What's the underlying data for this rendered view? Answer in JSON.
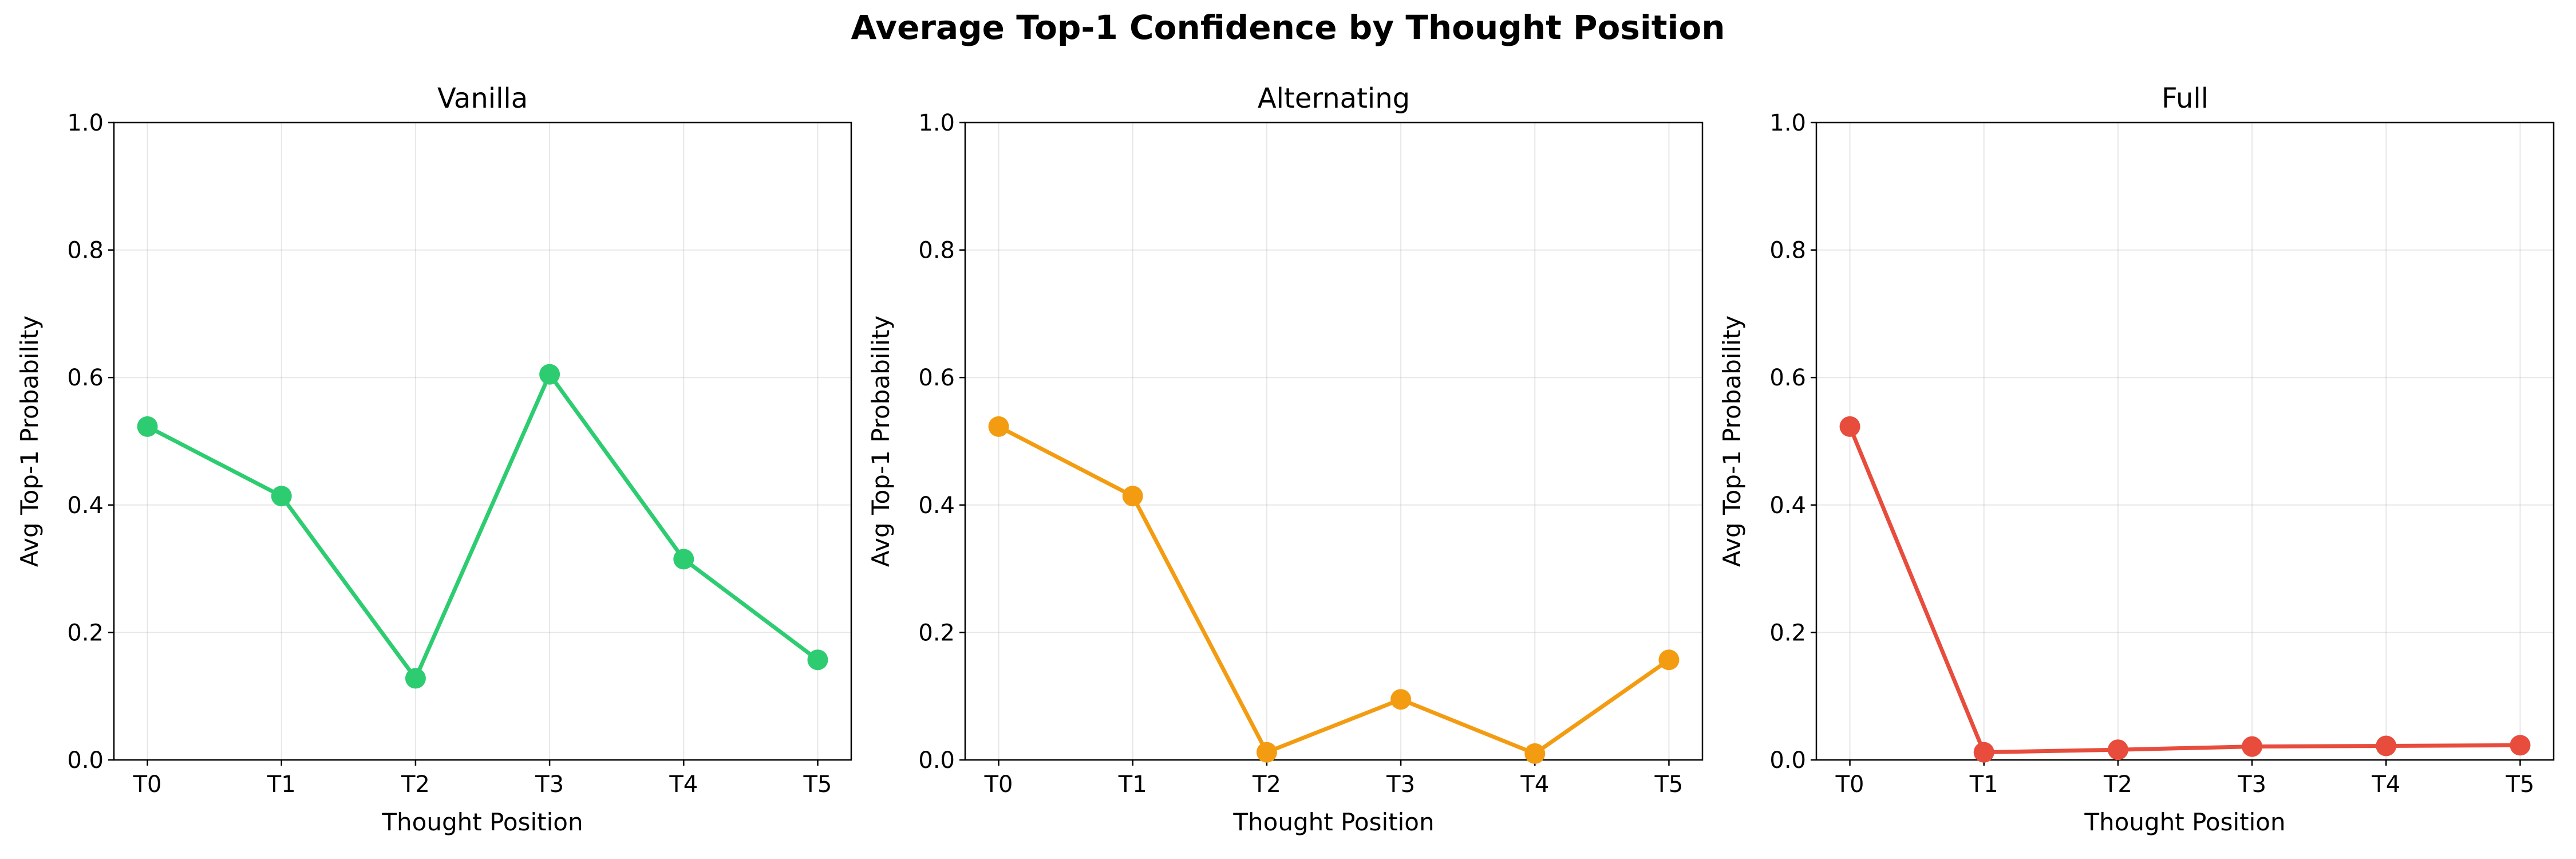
{
  "figure": {
    "title": "Average Top-1 Confidence by Thought Position"
  },
  "chart_data": [
    {
      "type": "line",
      "title": "Vanilla",
      "xlabel": "Thought Position",
      "ylabel": "Avg Top-1 Probability",
      "categories": [
        "T0",
        "T1",
        "T2",
        "T3",
        "T4",
        "T5"
      ],
      "series": [
        {
          "values": [
            0.523,
            0.414,
            0.128,
            0.605,
            0.315,
            0.157
          ],
          "color": "#2ecc71"
        }
      ],
      "ylim": [
        0,
        1
      ],
      "yticks": [
        "0.0",
        "0.2",
        "0.4",
        "0.6",
        "0.8",
        "1.0"
      ],
      "grid": true,
      "marker": "circle"
    },
    {
      "type": "line",
      "title": "Alternating",
      "xlabel": "Thought Position",
      "ylabel": "Avg Top-1 Probability",
      "categories": [
        "T0",
        "T1",
        "T2",
        "T3",
        "T4",
        "T5"
      ],
      "series": [
        {
          "values": [
            0.523,
            0.414,
            0.012,
            0.095,
            0.01,
            0.157
          ],
          "color": "#f39c12"
        }
      ],
      "ylim": [
        0,
        1
      ],
      "yticks": [
        "0.0",
        "0.2",
        "0.4",
        "0.6",
        "0.8",
        "1.0"
      ],
      "grid": true,
      "marker": "circle"
    },
    {
      "type": "line",
      "title": "Full",
      "xlabel": "Thought Position",
      "ylabel": "Avg Top-1 Probability",
      "categories": [
        "T0",
        "T1",
        "T2",
        "T3",
        "T4",
        "T5"
      ],
      "series": [
        {
          "values": [
            0.523,
            0.012,
            0.016,
            0.021,
            0.022,
            0.023
          ],
          "color": "#e74c3c"
        }
      ],
      "ylim": [
        0,
        1
      ],
      "yticks": [
        "0.0",
        "0.2",
        "0.4",
        "0.6",
        "0.8",
        "1.0"
      ],
      "grid": true,
      "marker": "circle"
    }
  ]
}
